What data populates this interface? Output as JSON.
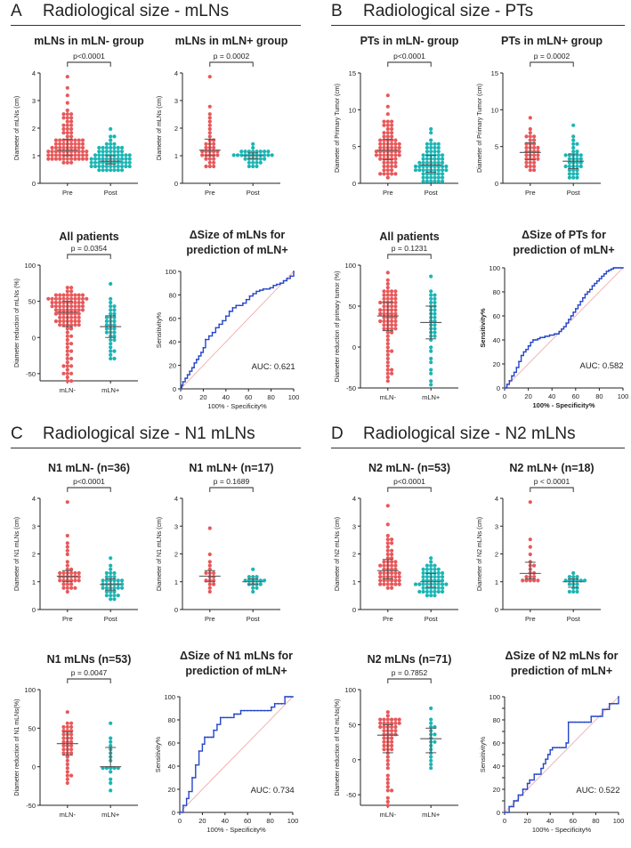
{
  "colors": {
    "red": "#e8585a",
    "teal": "#1cb5b5",
    "roc": "#2547c9",
    "diag": "#f2a0a0",
    "axis": "#222"
  },
  "sections": [
    {
      "letter": "A",
      "title": "Radiological size - mLNs"
    },
    {
      "letter": "B",
      "title": "Radiological size - PTs"
    },
    {
      "letter": "C",
      "title": "Radiological size - N1 mLNs"
    },
    {
      "letter": "D",
      "title": "Radiological size - N2 mLNs"
    }
  ],
  "chart_data": [
    {
      "type": "scatter",
      "kind": "dot",
      "title": "mLNs in mLN- group",
      "ylabel": "Diameter of mLNs (cm)",
      "ylim": [
        0,
        4
      ],
      "yticks": [
        0,
        1,
        2,
        3,
        4
      ],
      "categories": [
        "Pre",
        "Post"
      ],
      "pvalue": "p<0.0001",
      "series": [
        {
          "name": "Pre",
          "color": "red",
          "n": 100,
          "median": 1.2,
          "q1": 1.0,
          "q3": 1.6,
          "min": 0.8,
          "max": 3.8
        },
        {
          "name": "Post",
          "color": "teal",
          "n": 100,
          "median": 0.8,
          "q1": 0.7,
          "q3": 1.0,
          "min": 0.5,
          "max": 1.9
        }
      ]
    },
    {
      "type": "scatter",
      "kind": "dot",
      "title": "mLNs in mLN+ group",
      "ylabel": "Diameter of mLNs (cm)",
      "ylim": [
        0,
        4
      ],
      "yticks": [
        0,
        1,
        2,
        3,
        4
      ],
      "categories": [
        "Pre",
        "Post"
      ],
      "pvalue": "p = 0.0002",
      "series": [
        {
          "name": "Pre",
          "color": "red",
          "n": 35,
          "median": 1.2,
          "q1": 1.0,
          "q3": 1.6,
          "min": 0.6,
          "max": 3.9
        },
        {
          "name": "Post",
          "color": "teal",
          "n": 35,
          "median": 1.0,
          "q1": 0.9,
          "q3": 1.1,
          "min": 0.6,
          "max": 1.4
        }
      ]
    },
    {
      "type": "scatter",
      "kind": "dot",
      "title": "PTs in mLN- group",
      "ylabel": "Diameter of Primary Tumor (cm)",
      "ylim": [
        0,
        15
      ],
      "yticks": [
        0,
        5,
        10,
        15
      ],
      "categories": [
        "Pre",
        "Post"
      ],
      "pvalue": "p<0.0001",
      "series": [
        {
          "name": "Pre",
          "color": "red",
          "n": 70,
          "median": 4.5,
          "q1": 3.2,
          "q3": 6.0,
          "min": 1.0,
          "max": 11.8
        },
        {
          "name": "Post",
          "color": "teal",
          "n": 70,
          "median": 2.5,
          "q1": 1.5,
          "q3": 3.8,
          "min": 0.2,
          "max": 7.6
        }
      ]
    },
    {
      "type": "scatter",
      "kind": "dot",
      "title": "PTs in mLN+ group",
      "ylabel": "Diameter of Primary Tumor (cm)",
      "ylim": [
        0,
        15
      ],
      "yticks": [
        0,
        5,
        10,
        15
      ],
      "categories": [
        "Pre",
        "Post"
      ],
      "pvalue": "p = 0.0002",
      "series": [
        {
          "name": "Pre",
          "color": "red",
          "n": 35,
          "median": 4.2,
          "q1": 3.2,
          "q3": 5.5,
          "min": 1.8,
          "max": 8.8
        },
        {
          "name": "Post",
          "color": "teal",
          "n": 35,
          "median": 3.0,
          "q1": 2.0,
          "q3": 4.0,
          "min": 0.8,
          "max": 8.0
        }
      ]
    },
    {
      "type": "scatter",
      "kind": "dot",
      "title": "All patients",
      "ylabel": "Diameter reduction of mLNs (%)",
      "ylim": [
        -50,
        100
      ],
      "ymin_plot": -60,
      "yticks": [
        -50,
        0,
        50,
        100
      ],
      "categories": [
        "mLN-",
        "mLN+"
      ],
      "pvalue": "p = 0.0354",
      "series": [
        {
          "name": "mLN-",
          "color": "red",
          "n": 100,
          "median": 35,
          "q1": 15,
          "q3": 50,
          "min": -60,
          "max": 70
        },
        {
          "name": "mLN+",
          "color": "teal",
          "n": 35,
          "median": 15,
          "q1": 0,
          "q3": 30,
          "min": -30,
          "max": 75
        }
      ]
    },
    {
      "type": "line",
      "kind": "roc",
      "title": "ΔSize of mLNs for prediction of mLN+",
      "xlabel": "100% - Specificity%",
      "ylabel": "Sensitivity%",
      "auc": "AUC: 0.621",
      "xticks": [
        0,
        20,
        40,
        60,
        80,
        100
      ],
      "yticks": [
        0,
        20,
        40,
        60,
        80,
        100
      ],
      "x": [
        0,
        1,
        2,
        4,
        6,
        8,
        10,
        12,
        14,
        16,
        18,
        20,
        22,
        25,
        28,
        31,
        34,
        37,
        40,
        43,
        46,
        49,
        52,
        55,
        58,
        61,
        64,
        67,
        70,
        73,
        76,
        79,
        82,
        85,
        88,
        91,
        94,
        97,
        100
      ],
      "y": [
        0,
        3,
        6,
        9,
        12,
        15,
        18,
        22,
        25,
        28,
        31,
        35,
        42,
        45,
        48,
        52,
        55,
        58,
        62,
        66,
        69,
        71,
        71,
        73,
        76,
        79,
        81,
        83,
        84,
        85,
        85,
        86,
        88,
        89,
        90,
        92,
        94,
        96,
        100
      ]
    },
    {
      "type": "scatter",
      "kind": "dot",
      "title": "All patients",
      "ylabel": "Diameter reduction of primary tumor (%)",
      "ylim": [
        -50,
        100
      ],
      "yticks": [
        -50,
        0,
        50,
        100
      ],
      "categories": [
        "mLN-",
        "mLN+"
      ],
      "pvalue": "p = 0.1231",
      "series": [
        {
          "name": "mLN-",
          "color": "red",
          "n": 70,
          "median": 38,
          "q1": 20,
          "q3": 55,
          "min": -40,
          "max": 90
        },
        {
          "name": "mLN+",
          "color": "teal",
          "n": 35,
          "median": 30,
          "q1": 10,
          "q3": 50,
          "min": -45,
          "max": 85
        }
      ]
    },
    {
      "type": "line",
      "kind": "roc",
      "title": "ΔSize of PTs for prediction of mLN+",
      "xlabel": "100% - Specificity%",
      "ylabel": "Sensitivity%",
      "auc": "AUC: 0.582",
      "xticks": [
        0,
        20,
        40,
        60,
        80,
        100
      ],
      "yticks": [
        0,
        20,
        40,
        60,
        80,
        100
      ],
      "x": [
        0,
        2,
        4,
        6,
        8,
        10,
        12,
        14,
        16,
        18,
        20,
        22,
        24,
        26,
        28,
        30,
        32,
        34,
        36,
        38,
        40,
        42,
        44,
        46,
        48,
        50,
        52,
        54,
        56,
        58,
        60,
        62,
        64,
        66,
        68,
        70,
        72,
        74,
        76,
        78,
        80,
        82,
        84,
        86,
        88,
        90,
        92,
        94,
        96,
        98,
        100
      ],
      "y": [
        0,
        3,
        6,
        10,
        13,
        17,
        22,
        27,
        30,
        32,
        35,
        38,
        40,
        40,
        41,
        42,
        42,
        43,
        43,
        44,
        44,
        45,
        45,
        47,
        49,
        51,
        54,
        57,
        60,
        63,
        66,
        69,
        72,
        75,
        78,
        80,
        82,
        85,
        87,
        89,
        91,
        93,
        95,
        97,
        98,
        99,
        100,
        100,
        100,
        100,
        100
      ]
    },
    {
      "type": "scatter",
      "kind": "dot",
      "title": "N1 mLN-  (n=36)",
      "ylabel": "Diameter of N1 mLNs (cm)",
      "ylim": [
        0,
        4
      ],
      "yticks": [
        0,
        1,
        2,
        3,
        4
      ],
      "categories": [
        "Pre",
        "Post"
      ],
      "pvalue": "p<0.0001",
      "series": [
        {
          "name": "Pre",
          "color": "red",
          "n": 36,
          "median": 1.2,
          "q1": 1.0,
          "q3": 1.4,
          "min": 0.7,
          "max": 3.8
        },
        {
          "name": "Post",
          "color": "teal",
          "n": 36,
          "median": 0.9,
          "q1": 0.7,
          "q3": 1.1,
          "min": 0.4,
          "max": 1.9
        }
      ]
    },
    {
      "type": "scatter",
      "kind": "dot",
      "title": "N1 mLN+ (n=17)",
      "ylabel": "Diameter of N1 mLNs (cm)",
      "ylim": [
        0,
        4
      ],
      "yticks": [
        0,
        1,
        2,
        3,
        4
      ],
      "categories": [
        "Pre",
        "Post"
      ],
      "pvalue": "p = 0.1689",
      "series": [
        {
          "name": "Pre",
          "color": "red",
          "n": 17,
          "median": 1.2,
          "q1": 1.0,
          "q3": 1.4,
          "min": 0.7,
          "max": 2.9
        },
        {
          "name": "Post",
          "color": "teal",
          "n": 17,
          "median": 1.0,
          "q1": 0.9,
          "q3": 1.1,
          "min": 0.7,
          "max": 1.4
        }
      ]
    },
    {
      "type": "scatter",
      "kind": "dot",
      "title": "N2 mLN- (n=53)",
      "ylabel": "Diameter of N2 mLNs (cm)",
      "ylim": [
        0,
        4
      ],
      "yticks": [
        0,
        1,
        2,
        3,
        4
      ],
      "categories": [
        "Pre",
        "Post"
      ],
      "pvalue": "p<0.0001",
      "series": [
        {
          "name": "Pre",
          "color": "red",
          "n": 53,
          "median": 1.4,
          "q1": 1.1,
          "q3": 1.8,
          "min": 0.8,
          "max": 3.7
        },
        {
          "name": "Post",
          "color": "teal",
          "n": 53,
          "median": 1.0,
          "q1": 0.8,
          "q3": 1.3,
          "min": 0.5,
          "max": 1.9
        }
      ]
    },
    {
      "type": "scatter",
      "kind": "dot",
      "title": "N2 mLN+ (n=18)",
      "ylabel": "Diameter of N2 mLNs (cm)",
      "ylim": [
        0,
        4
      ],
      "yticks": [
        0,
        1,
        2,
        3,
        4
      ],
      "categories": [
        "Pre",
        "Post"
      ],
      "pvalue": "p < 0.0001",
      "series": [
        {
          "name": "Pre",
          "color": "red",
          "n": 18,
          "median": 1.3,
          "q1": 1.1,
          "q3": 1.7,
          "min": 1.0,
          "max": 3.9
        },
        {
          "name": "Post",
          "color": "teal",
          "n": 18,
          "median": 1.0,
          "q1": 0.8,
          "q3": 1.1,
          "min": 0.6,
          "max": 1.3
        }
      ]
    },
    {
      "type": "scatter",
      "kind": "dot",
      "title": "N1 mLNs (n=53)",
      "ylabel": "Diameter reduction of N1 mLNs(%)",
      "ylim": [
        -50,
        100
      ],
      "yticks": [
        -50,
        0,
        50,
        100
      ],
      "categories": [
        "mLN-",
        "mLN+"
      ],
      "pvalue": "p = 0.0047",
      "series": [
        {
          "name": "mLN-",
          "color": "red",
          "n": 36,
          "median": 30,
          "q1": 15,
          "q3": 45,
          "min": -20,
          "max": 70
        },
        {
          "name": "mLN+",
          "color": "teal",
          "n": 17,
          "median": 0,
          "q1": 0,
          "q3": 25,
          "min": -30,
          "max": 55
        }
      ]
    },
    {
      "type": "line",
      "kind": "roc",
      "title": "ΔSize of N1 mLNs for prediction of mLN+",
      "xlabel": "100% - Specificity%",
      "ylabel": "Sensitivity%",
      "auc": "AUC: 0.734",
      "xticks": [
        0,
        20,
        40,
        60,
        80,
        100
      ],
      "yticks": [
        0,
        20,
        40,
        60,
        80,
        100
      ],
      "x": [
        0,
        3,
        6,
        8,
        11,
        14,
        17,
        20,
        22,
        25,
        28,
        30,
        33,
        36,
        39,
        42,
        45,
        48,
        51,
        54,
        57,
        60,
        63,
        66,
        69,
        72,
        75,
        78,
        81,
        84,
        87,
        90,
        93,
        96,
        98,
        100
      ],
      "y": [
        0,
        6,
        12,
        18,
        30,
        41,
        53,
        59,
        65,
        65,
        65,
        71,
        76,
        82,
        82,
        82,
        82,
        85,
        85,
        88,
        88,
        88,
        88,
        88,
        88,
        88,
        88,
        88,
        91,
        94,
        94,
        94,
        100,
        100,
        100,
        100
      ]
    },
    {
      "type": "scatter",
      "kind": "dot",
      "title": "N2 mLNs (n=71)",
      "ylabel": "Diameter reduction of N2 mLNs(%)",
      "ylim": [
        -50,
        100
      ],
      "ymin_plot": -65,
      "yticks": [
        -50,
        0,
        50,
        100
      ],
      "categories": [
        "mLN-",
        "mLN+"
      ],
      "pvalue": "p = 0.7852",
      "series": [
        {
          "name": "mLN-",
          "color": "red",
          "n": 53,
          "median": 35,
          "q1": 10,
          "q3": 50,
          "min": -65,
          "max": 70
        },
        {
          "name": "mLN+",
          "color": "teal",
          "n": 18,
          "median": 30,
          "q1": 10,
          "q3": 45,
          "min": -10,
          "max": 75
        }
      ]
    },
    {
      "type": "line",
      "kind": "roc",
      "title": "ΔSize of N2 mLNs for prediction of mLN+",
      "xlabel": "100% - Specificity%",
      "ylabel": "Sensitivity%",
      "auc": "AUC: 0.522",
      "xticks": [
        0,
        20,
        40,
        60,
        80,
        100
      ],
      "yticks": [
        0,
        10,
        20,
        30,
        40,
        50,
        60,
        70,
        80,
        90,
        100
      ],
      "x": [
        0,
        4,
        8,
        12,
        16,
        20,
        22,
        24,
        26,
        28,
        30,
        32,
        34,
        36,
        38,
        40,
        42,
        44,
        46,
        48,
        50,
        52,
        54,
        56,
        58,
        60,
        62,
        64,
        66,
        68,
        70,
        72,
        74,
        76,
        78,
        80,
        82,
        84,
        86,
        88,
        90,
        92,
        94,
        96,
        98,
        100
      ],
      "y": [
        0,
        5,
        10,
        15,
        20,
        25,
        28,
        28,
        33,
        33,
        33,
        38,
        42,
        46,
        50,
        54,
        56,
        56,
        56,
        56,
        56,
        56,
        60,
        78,
        78,
        78,
        78,
        78,
        78,
        78,
        78,
        78,
        78,
        83,
        83,
        83,
        83,
        83,
        89,
        89,
        89,
        94,
        94,
        94,
        94,
        100
      ]
    }
  ]
}
